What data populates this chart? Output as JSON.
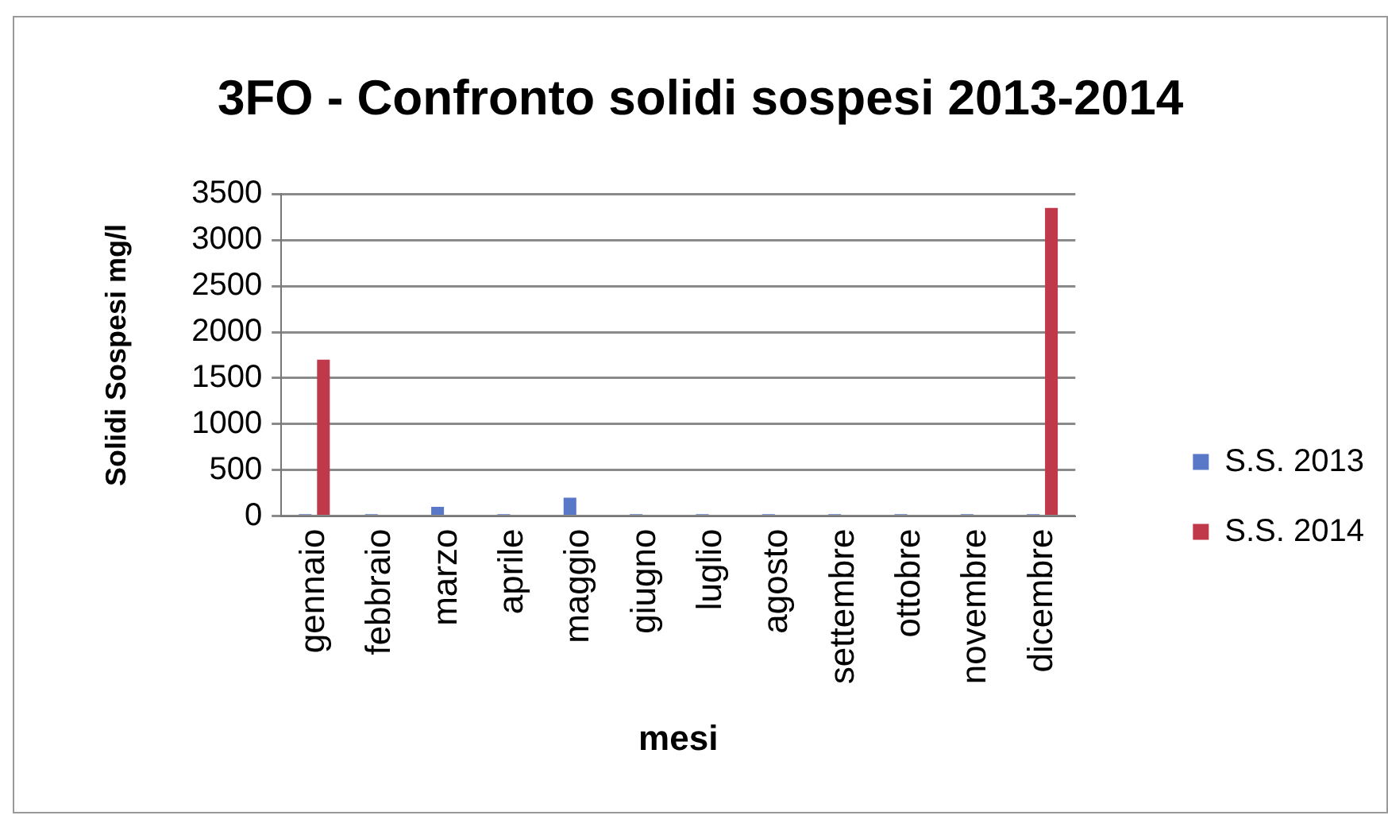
{
  "chart_data": {
    "type": "bar",
    "title": "3FO - Confronto solidi sospesi 2013-2014",
    "xlabel": "mesi",
    "ylabel": "Solidi Sospesi mg/l",
    "categories": [
      "gennaio",
      "febbraio",
      "marzo",
      "aprile",
      "maggio",
      "giugno",
      "luglio",
      "agosto",
      "settembre",
      "ottobre",
      "novembre",
      "dicembre"
    ],
    "series": [
      {
        "name": "S.S. 2013",
        "color": "#5a78c8",
        "values": [
          20,
          20,
          100,
          20,
          200,
          20,
          20,
          20,
          20,
          20,
          20,
          20
        ]
      },
      {
        "name": "S.S. 2014",
        "color": "#c0394a",
        "values": [
          1700,
          null,
          null,
          null,
          null,
          null,
          null,
          null,
          null,
          null,
          null,
          3350
        ]
      }
    ],
    "ylim": [
      0,
      3500
    ],
    "yticks": [
      0,
      500,
      1000,
      1500,
      2000,
      2500,
      3000,
      3500
    ],
    "grid": "y",
    "legend": "right"
  }
}
